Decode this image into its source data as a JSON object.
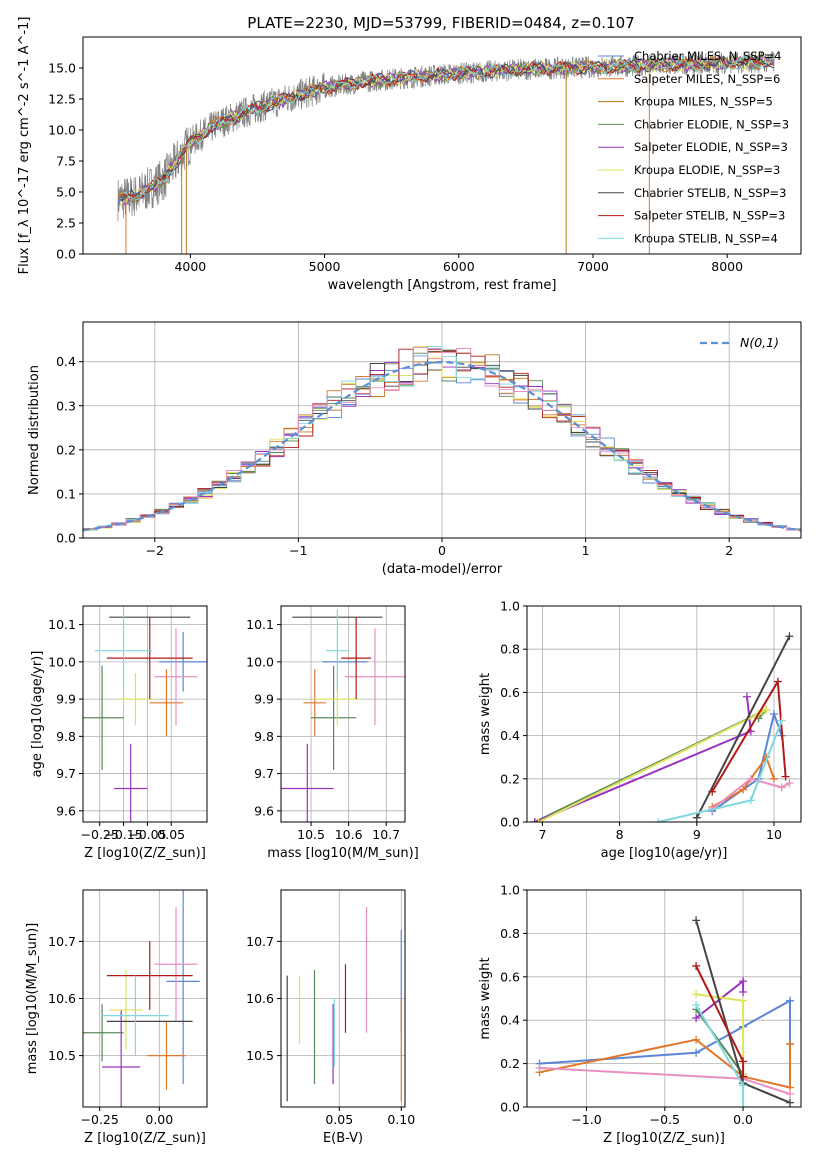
{
  "figure": {
    "title": "PLATE=2230, MJD=53799, FIBERID=0484, z=0.107"
  },
  "chart_data": [
    {
      "id": "spectrum",
      "type": "line",
      "xlabel": "wavelength [Angstrom, rest frame]",
      "ylabel": "Flux [f_λ 10^-17 erg cm^-2 s^-1 A^-1]",
      "xlim": [
        3200,
        8550
      ],
      "ylim": [
        0,
        17.5
      ],
      "xticks": [
        4000,
        5000,
        6000,
        7000,
        8000
      ],
      "yticks": [
        0.0,
        2.5,
        5.0,
        7.5,
        10.0,
        12.5,
        15.0
      ],
      "legend_position": "right",
      "data_anchors": {
        "x": [
          3450,
          3600,
          3800,
          4000,
          4200,
          4500,
          4800,
          5000,
          5300,
          5600,
          5900,
          6200,
          6500,
          6800,
          7100,
          7400,
          7700,
          8000,
          8350
        ],
        "y": [
          4.4,
          4.7,
          6.0,
          9.0,
          10.5,
          11.8,
          12.8,
          13.4,
          13.9,
          14.2,
          14.5,
          14.7,
          14.9,
          15.0,
          15.1,
          15.2,
          15.3,
          15.4,
          15.5
        ]
      },
      "legend": [
        {
          "label": "Chabrier MILES, N_SSP=4",
          "color": "#5b86d6"
        },
        {
          "label": "Salpeter MILES, N_SSP=6",
          "color": "#e2772a"
        },
        {
          "label": "Kroupa MILES, N_SSP=5",
          "color": "#c07a1a"
        },
        {
          "label": "Chabrier ELODIE, N_SSP=3",
          "color": "#5a8a5a"
        },
        {
          "label": "Salpeter ELODIE, N_SSP=3",
          "color": "#9b32c0"
        },
        {
          "label": "Kroupa ELODIE, N_SSP=3",
          "color": "#dde35a"
        },
        {
          "label": "Chabrier STELIB, N_SSP=3",
          "color": "#444444"
        },
        {
          "label": "Salpeter STELIB, N_SSP=3",
          "color": "#b21a1a"
        },
        {
          "label": "Kroupa STELIB, N_SSP=4",
          "color": "#7fd8e0"
        }
      ]
    },
    {
      "id": "residuals",
      "type": "line",
      "xlabel": "(data-model)/error",
      "ylabel": "Normed distribution",
      "xlim": [
        -2.5,
        2.5
      ],
      "ylim": [
        0,
        0.49
      ],
      "xticks": [
        -2,
        -1,
        0,
        1,
        2
      ],
      "yticks": [
        0.0,
        0.1,
        0.2,
        0.3,
        0.4
      ],
      "grid": true,
      "legend_position": "top-right",
      "legend": [
        {
          "label": "N(0,1)",
          "color": "#5b8fd6"
        }
      ],
      "bin_width": 0.1,
      "bin_start": -2.5,
      "gaussian_sigma": 1.0
    },
    {
      "id": "age_vs_Z",
      "type": "scatter",
      "xlabel": "Z [log10(Z/Z_sun)]",
      "ylabel": "age [log10(age/yr)]",
      "xlim": [
        -0.32,
        0.2
      ],
      "ylim": [
        9.57,
        10.15
      ],
      "xticks": [
        -0.25,
        -0.15,
        -0.05,
        0.05
      ],
      "xticklabels": [
        "−0.25",
        "−0.15",
        "−0.05",
        "0.05"
      ],
      "yticks": [
        9.6,
        9.7,
        9.8,
        9.9,
        10.0,
        10.1
      ],
      "grid": true,
      "points": [
        {
          "color": "#5b86d6",
          "x": 0.1,
          "y": 10.0,
          "xerr": 0.1,
          "yerr": 0.08
        },
        {
          "color": "#e2772a",
          "x": 0.03,
          "y": 9.89,
          "xerr": 0.07,
          "yerr": 0.09
        },
        {
          "color": "#e891c0",
          "x": 0.07,
          "y": 9.96,
          "xerr": 0.09,
          "yerr": 0.13
        },
        {
          "color": "#5a8a5a",
          "x": -0.24,
          "y": 9.85,
          "xerr": 0.09,
          "yerr": 0.14
        },
        {
          "color": "#9b32c0",
          "x": -0.12,
          "y": 9.66,
          "xerr": 0.07,
          "yerr": 0.12
        },
        {
          "color": "#dde35a",
          "x": -0.1,
          "y": 9.9,
          "xerr": 0.07,
          "yerr": 0.07
        },
        {
          "color": "#444444",
          "x": -0.04,
          "y": 10.12,
          "xerr": 0.17,
          "yerr": 0.0
        },
        {
          "color": "#b21a1a",
          "x": -0.04,
          "y": 10.01,
          "xerr": 0.18,
          "yerr": 0.11
        },
        {
          "color": "#7fd8e0",
          "x": -0.15,
          "y": 10.03,
          "xerr": 0.12,
          "yerr": 0.11
        }
      ]
    },
    {
      "id": "age_vs_mass",
      "type": "scatter",
      "xlabel": "mass [log10(M/M_sun)]",
      "ylabel": "",
      "xlim": [
        10.42,
        10.75
      ],
      "ylim": [
        9.57,
        10.15
      ],
      "xticks": [
        10.5,
        10.6,
        10.7
      ],
      "yticks": [
        9.6,
        9.7,
        9.8,
        9.9,
        10.0,
        10.1
      ],
      "grid": true,
      "points": [
        {
          "color": "#5b86d6",
          "x": 10.59,
          "y": 10.0,
          "xerr": 0.06,
          "yerr": 0.0
        },
        {
          "color": "#e2772a",
          "x": 10.51,
          "y": 9.89,
          "xerr": 0.03,
          "yerr": 0.09
        },
        {
          "color": "#e891c0",
          "x": 10.67,
          "y": 9.96,
          "xerr": 0.08,
          "yerr": 0.13
        },
        {
          "color": "#5a8a5a",
          "x": 10.56,
          "y": 9.85,
          "xerr": 0.06,
          "yerr": 0.14
        },
        {
          "color": "#9b32c0",
          "x": 10.49,
          "y": 9.66,
          "xerr": 0.07,
          "yerr": 0.12
        },
        {
          "color": "#dde35a",
          "x": 10.57,
          "y": 9.9,
          "xerr": 0.06,
          "yerr": 0.07
        },
        {
          "color": "#444444",
          "x": 10.57,
          "y": 10.12,
          "xerr": 0.12,
          "yerr": 0.0
        },
        {
          "color": "#b21a1a",
          "x": 10.62,
          "y": 10.01,
          "xerr": 0.04,
          "yerr": 0.11
        },
        {
          "color": "#7fd8e0",
          "x": 10.57,
          "y": 10.03,
          "xerr": 0.03,
          "yerr": 0.11
        }
      ]
    },
    {
      "id": "weights_vs_age",
      "type": "line",
      "xlabel": "age [log10(age/yr)]",
      "ylabel": "mass weight",
      "xlim": [
        6.8,
        10.35
      ],
      "ylim": [
        0,
        1.0
      ],
      "xticks": [
        7,
        8,
        9,
        10
      ],
      "yticks": [
        0.0,
        0.2,
        0.4,
        0.6,
        0.8,
        1.0
      ],
      "grid": true,
      "series": [
        {
          "color": "#5b86d6",
          "x": [
            9.2,
            9.8,
            10.0,
            10.1
          ],
          "y": [
            0.05,
            0.2,
            0.5,
            0.4
          ]
        },
        {
          "color": "#e2772a",
          "x": [
            9.2,
            9.6,
            9.9,
            10.0
          ],
          "y": [
            0.07,
            0.15,
            0.3,
            0.2
          ]
        },
        {
          "color": "#e891c0",
          "x": [
            9.2,
            9.7,
            10.1,
            10.2
          ],
          "y": [
            0.06,
            0.2,
            0.16,
            0.18
          ]
        },
        {
          "color": "#5a8a5a",
          "x": [
            6.9,
            9.9,
            9.8
          ],
          "y": [
            0.0,
            0.52,
            0.48
          ]
        },
        {
          "color": "#9b32c0",
          "x": [
            6.9,
            9.7,
            9.65
          ],
          "y": [
            0.0,
            0.42,
            0.58
          ]
        },
        {
          "color": "#dde35a",
          "x": [
            6.95,
            9.8,
            9.9
          ],
          "y": [
            0.0,
            0.5,
            0.52
          ]
        },
        {
          "color": "#444444",
          "x": [
            9.0,
            10.2
          ],
          "y": [
            0.02,
            0.86
          ]
        },
        {
          "color": "#b21a1a",
          "x": [
            9.2,
            10.05,
            10.15
          ],
          "y": [
            0.14,
            0.65,
            0.21
          ]
        },
        {
          "color": "#7fd8e0",
          "x": [
            8.5,
            9.7,
            10.1
          ],
          "y": [
            0.0,
            0.1,
            0.47
          ]
        }
      ]
    },
    {
      "id": "mass_vs_Z",
      "type": "scatter",
      "xlabel": "Z [log10(Z/Z_sun)]",
      "ylabel": "mass [log10(M/M_sun)]",
      "xlim": [
        -0.32,
        0.2
      ],
      "ylim": [
        10.41,
        10.79
      ],
      "xticks": [
        -0.25,
        0.0
      ],
      "xticklabels": [
        "−0.25",
        "0.00"
      ],
      "yticks": [
        10.5,
        10.6,
        10.7
      ],
      "grid": true,
      "points": [
        {
          "color": "#5b86d6",
          "x": 0.1,
          "y": 10.63,
          "xerr": 0.07,
          "yerr": 0.18
        },
        {
          "color": "#e2772a",
          "x": 0.03,
          "y": 10.5,
          "xerr": 0.08,
          "yerr": 0.06
        },
        {
          "color": "#e891c0",
          "x": 0.07,
          "y": 10.66,
          "xerr": 0.09,
          "yerr": 0.1
        },
        {
          "color": "#5a8a5a",
          "x": -0.24,
          "y": 10.54,
          "xerr": 0.09,
          "yerr": 0.05
        },
        {
          "color": "#9b32c0",
          "x": -0.16,
          "y": 10.48,
          "xerr": 0.08,
          "yerr": 0.1
        },
        {
          "color": "#dde35a",
          "x": -0.14,
          "y": 10.58,
          "xerr": 0.07,
          "yerr": 0.07
        },
        {
          "color": "#444444",
          "x": -0.04,
          "y": 10.56,
          "xerr": 0.18,
          "yerr": 0.0
        },
        {
          "color": "#b21a1a",
          "x": -0.04,
          "y": 10.64,
          "xerr": 0.18,
          "yerr": 0.06
        },
        {
          "color": "#7fd8e0",
          "x": -0.1,
          "y": 10.57,
          "xerr": 0.14,
          "yerr": 0.07
        }
      ]
    },
    {
      "id": "mass_vs_ebv",
      "type": "scatter",
      "xlabel": "E(B-V)",
      "ylabel": "",
      "xlim": [
        0.003,
        0.103
      ],
      "ylim": [
        10.41,
        10.79
      ],
      "xticks": [
        0.05,
        0.1
      ],
      "xticklabels": [
        "0.05",
        "0.10"
      ],
      "yticks": [
        10.5,
        10.6,
        10.7
      ],
      "grid": true,
      "points": [
        {
          "color": "#5b86d6",
          "x": 0.1,
          "y": 10.63,
          "xerr": 0.0,
          "yerr": 0.09
        },
        {
          "color": "#e2772a",
          "x": 0.1,
          "y": 10.51,
          "xerr": 0.0,
          "yerr": 0.09
        },
        {
          "color": "#e891c0",
          "x": 0.072,
          "y": 10.65,
          "xerr": 0.0,
          "yerr": 0.11
        },
        {
          "color": "#5a8a5a",
          "x": 0.03,
          "y": 10.55,
          "xerr": 0.0,
          "yerr": 0.1
        },
        {
          "color": "#9b32c0",
          "x": 0.045,
          "y": 10.52,
          "xerr": 0.0,
          "yerr": 0.07
        },
        {
          "color": "#dde35a",
          "x": 0.018,
          "y": 10.58,
          "xerr": 0.0,
          "yerr": 0.06
        },
        {
          "color": "#444444",
          "x": 0.008,
          "y": 10.53,
          "xerr": 0.0,
          "yerr": 0.11
        },
        {
          "color": "#b21a1a",
          "x": 0.055,
          "y": 10.6,
          "xerr": 0.0,
          "yerr": 0.06
        },
        {
          "color": "#7fd8e0",
          "x": 0.046,
          "y": 10.54,
          "xerr": 0.0,
          "yerr": 0.06
        }
      ]
    },
    {
      "id": "weights_vs_Z",
      "type": "line",
      "xlabel": "Z [log10(Z/Z_sun)]",
      "ylabel": "mass weight",
      "xlim": [
        -1.38,
        0.37
      ],
      "ylim": [
        0,
        1.0
      ],
      "xticks": [
        -1.0,
        -0.5,
        0.0
      ],
      "xticklabels": [
        "−1.0",
        "−0.5",
        "0.0"
      ],
      "yticks": [
        0.0,
        0.2,
        0.4,
        0.6,
        0.8,
        1.0
      ],
      "grid": true,
      "series": [
        {
          "color": "#5b86d6",
          "x": [
            -1.3,
            -0.3,
            0.0,
            0.3,
            0.3
          ],
          "y": [
            0.2,
            0.25,
            0.37,
            0.49,
            0.29
          ]
        },
        {
          "color": "#e2772a",
          "x": [
            -1.3,
            -0.3,
            0.0,
            0.3,
            0.3
          ],
          "y": [
            0.16,
            0.31,
            0.14,
            0.09,
            0.29
          ]
        },
        {
          "color": "#e891c0",
          "x": [
            -1.3,
            0.0,
            0.3
          ],
          "y": [
            0.18,
            0.13,
            0.06
          ]
        },
        {
          "color": "#5a8a5a",
          "x": [
            -0.3,
            0.0
          ],
          "y": [
            0.45,
            0.15
          ]
        },
        {
          "color": "#9b32c0",
          "x": [
            -0.3,
            0.0,
            0.0
          ],
          "y": [
            0.41,
            0.58,
            0.53
          ]
        },
        {
          "color": "#dde35a",
          "x": [
            -0.3,
            0.0,
            0.0
          ],
          "y": [
            0.52,
            0.49,
            0.15
          ]
        },
        {
          "color": "#444444",
          "x": [
            -0.3,
            0.0,
            0.3
          ],
          "y": [
            0.86,
            0.11,
            0.02
          ]
        },
        {
          "color": "#b21a1a",
          "x": [
            -0.3,
            0.0,
            0.0
          ],
          "y": [
            0.65,
            0.21,
            0.14
          ]
        },
        {
          "color": "#7fd8e0",
          "x": [
            -0.3,
            0.0,
            0.0
          ],
          "y": [
            0.47,
            0.1,
            0.0
          ]
        }
      ]
    }
  ]
}
